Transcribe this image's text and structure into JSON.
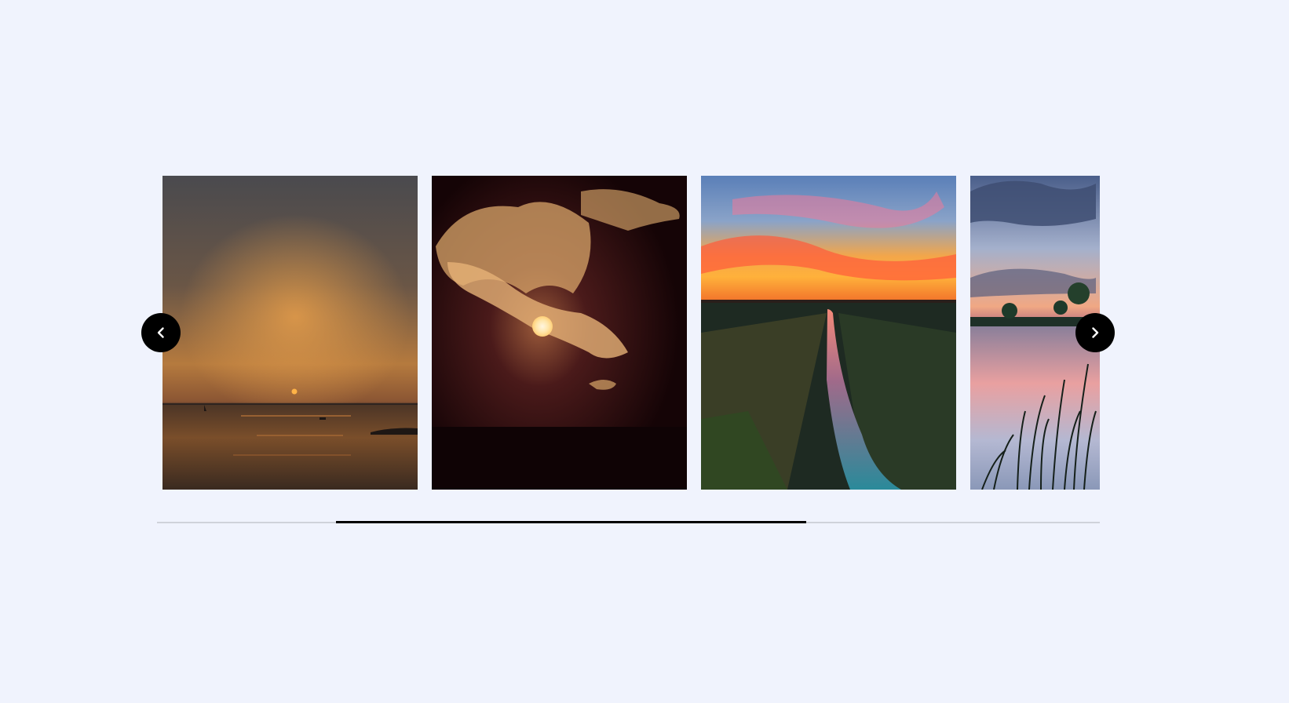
{
  "carousel": {
    "slides": [
      {
        "icon": "sunset-over-sea-photo"
      },
      {
        "icon": "sun-behind-clouds-photo"
      },
      {
        "icon": "sunset-canal-photo"
      },
      {
        "icon": "sunset-lake-reeds-photo"
      }
    ],
    "prev_button": {
      "icon": "chevron-left-icon"
    },
    "next_button": {
      "icon": "chevron-right-icon"
    },
    "progress": {
      "fraction": 0.5
    }
  },
  "colors": {
    "background": "#f0f3fd",
    "button": "#000000",
    "track": "#cfd2da",
    "thumb": "#000000"
  }
}
